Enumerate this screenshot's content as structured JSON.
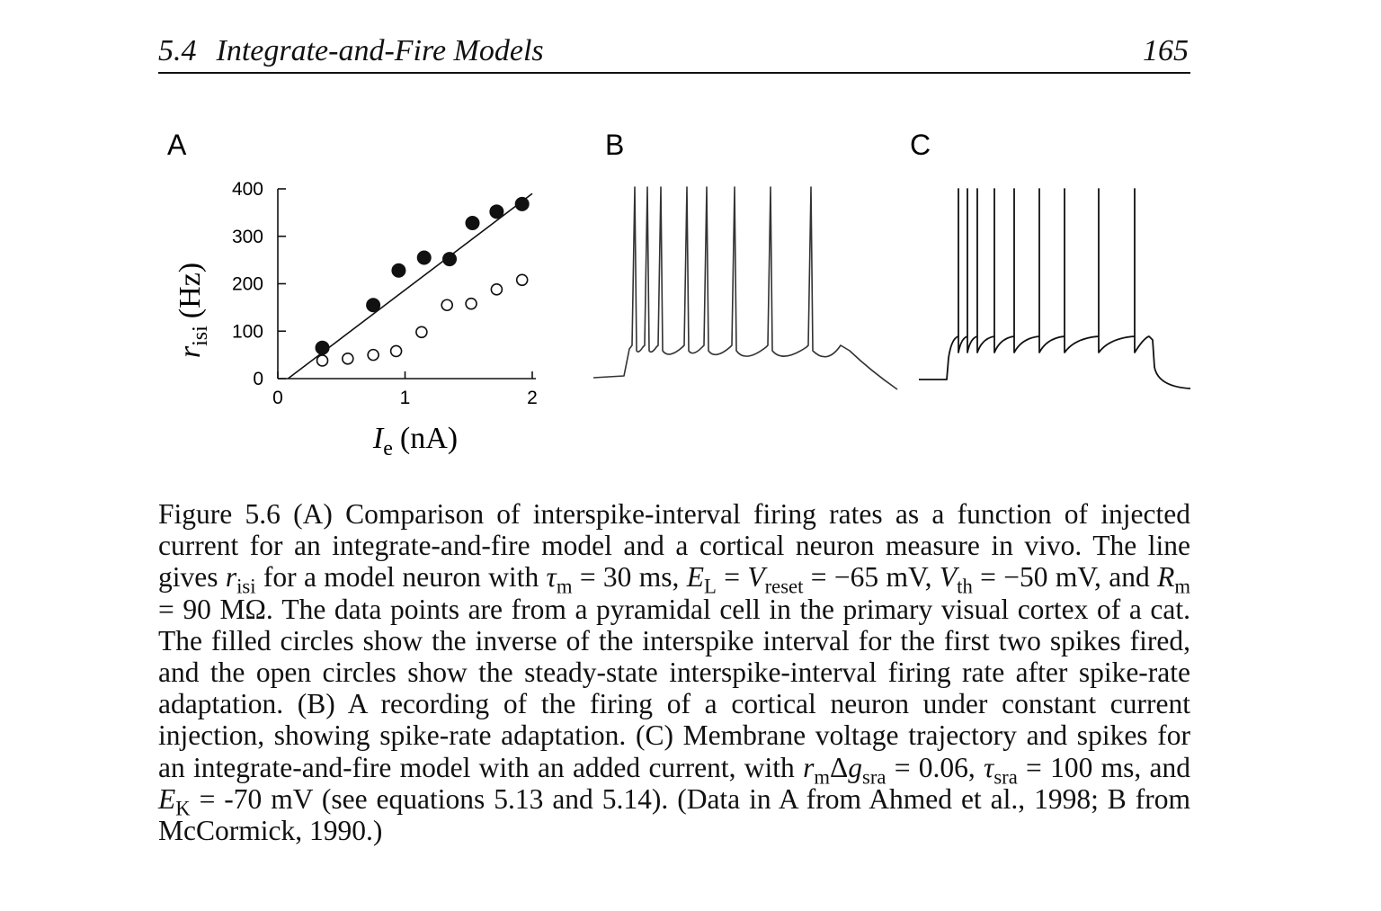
{
  "header": {
    "section_number": "5.4",
    "section_title": "Integrate-and-Fire Models",
    "page_number": "165"
  },
  "figure": {
    "panel_a": {
      "label": "A",
      "ylabel": {
        "symbol": "r",
        "sub": "isi",
        "unit": "(Hz)"
      },
      "xlabel": {
        "symbol": "I",
        "sub": "e",
        "unit": "(nA)"
      }
    },
    "panel_b": {
      "label": "B"
    },
    "panel_c": {
      "label": "C"
    }
  },
  "chart_data": {
    "type": "scatter",
    "xlim": [
      0,
      2
    ],
    "ylim": [
      0,
      400
    ],
    "x_ticks": [
      "0",
      "1",
      "2"
    ],
    "y_ticks": [
      "0",
      "100",
      "200",
      "300",
      "400"
    ],
    "grid": false,
    "series": [
      {
        "marker": "filled-circle",
        "x": [
          0.35,
          0.75,
          0.95,
          1.15,
          1.35,
          1.53,
          1.72,
          1.92
        ],
        "y": [
          65,
          155,
          228,
          255,
          252,
          328,
          352,
          368
        ]
      },
      {
        "marker": "open-circle",
        "x": [
          0.35,
          0.55,
          0.75,
          0.93,
          1.13,
          1.33,
          1.52,
          1.72,
          1.92
        ],
        "y": [
          38,
          42,
          50,
          58,
          98,
          155,
          158,
          188,
          208
        ]
      },
      {
        "marker": "line",
        "x": [
          0.08,
          2.0
        ],
        "y": [
          0,
          390
        ]
      }
    ]
  },
  "caption": {
    "p1": "Figure 5.6 (A) Comparison of interspike-interval firing rates as a function of injected current for an integrate-and-fire model and a cortical neuron measure in vivo. The line gives ",
    "p2": " for a model neuron with ",
    "p3": " = 30 ms, ",
    "p4": " = ",
    "p5": " = −65 mV, ",
    "p6": " = −50 mV, and ",
    "p7": " = 90 MΩ. The data points are from a pyramidal cell in the primary visual cortex of a cat. The filled circles show the inverse of the interspike interval for the first two spikes fired, and the open circles show the steady-state interspike-interval firing rate after spike-rate adaptation. (B) A recording of the firing of a cortical neuron under constant current injection, showing spike-rate adaptation. (C) Membrane voltage trajectory and spikes for an integrate-and-fire model with an added current, with ",
    "p8": " = 0.06, ",
    "p9": " = 100 ms, and ",
    "p10": " = -70 mV (see equations 5.13 and 5.14). (Data in A from Ahmed et al., 1998; B from McCormick, 1990.)",
    "sym": {
      "r": "r",
      "isi": "isi",
      "tau": "τ",
      "m": "m",
      "E": "E",
      "L": "L",
      "V": "V",
      "reset": "reset",
      "th": "th",
      "R": "R",
      "delta": "Δ",
      "g": "g",
      "sra": "sra",
      "K": "K"
    }
  }
}
